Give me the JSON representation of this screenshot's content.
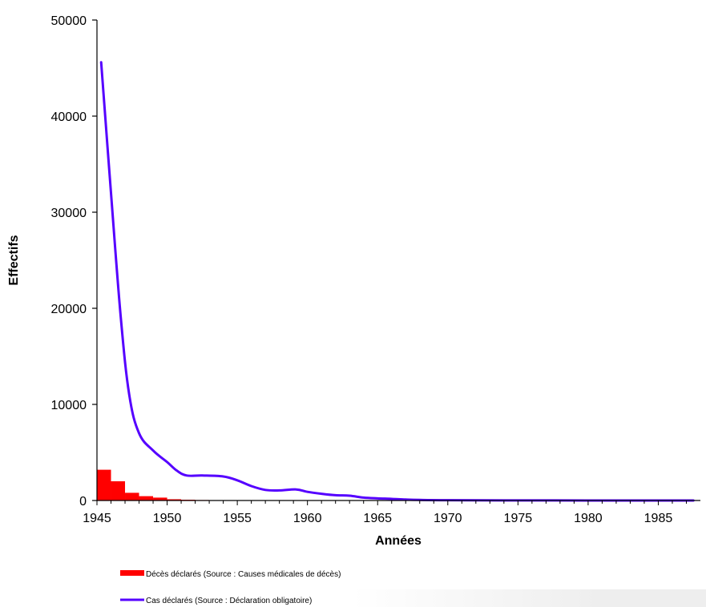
{
  "chart_data": {
    "type": "line",
    "xlabel": "Années",
    "ylabel": "Effectifs",
    "xlim": [
      1945,
      1988
    ],
    "ylim": [
      0,
      50000
    ],
    "xticks": [
      "1945",
      "1950",
      "1955",
      "1960",
      "1965",
      "1970",
      "1975",
      "1980",
      "1985"
    ],
    "yticks": [
      "0",
      "10000",
      "20000",
      "30000",
      "40000",
      "50000"
    ],
    "grid": false,
    "legend_position": "bottom-left",
    "series": [
      {
        "name": "Décès déclarés (Source : Causes médicales de décès)",
        "kind": "bar",
        "color": "#ff0000",
        "x": [
          1945,
          1946,
          1947,
          1948,
          1949,
          1950,
          1951,
          1952,
          1953
        ],
        "values": [
          3200,
          2000,
          800,
          450,
          300,
          130,
          80,
          50,
          30
        ]
      },
      {
        "name": "Cas déclarés (Source : Déclaration obligatoire)",
        "kind": "line",
        "color": "#5500ff",
        "x": [
          1945.3,
          1946,
          1946.7,
          1947.3,
          1948,
          1949,
          1950,
          1950.7,
          1951.4,
          1952.5,
          1954,
          1955,
          1956,
          1957,
          1958,
          1959.2,
          1960,
          1961,
          1962,
          1963,
          1964,
          1965,
          1966,
          1967,
          1968,
          1970,
          1975,
          1980,
          1985,
          1987.5
        ],
        "values": [
          45600,
          32000,
          19000,
          11000,
          7000,
          5200,
          4000,
          3100,
          2600,
          2600,
          2500,
          2100,
          1500,
          1100,
          1050,
          1150,
          900,
          700,
          550,
          500,
          300,
          220,
          170,
          100,
          60,
          30,
          10,
          5,
          3,
          2
        ]
      }
    ]
  }
}
